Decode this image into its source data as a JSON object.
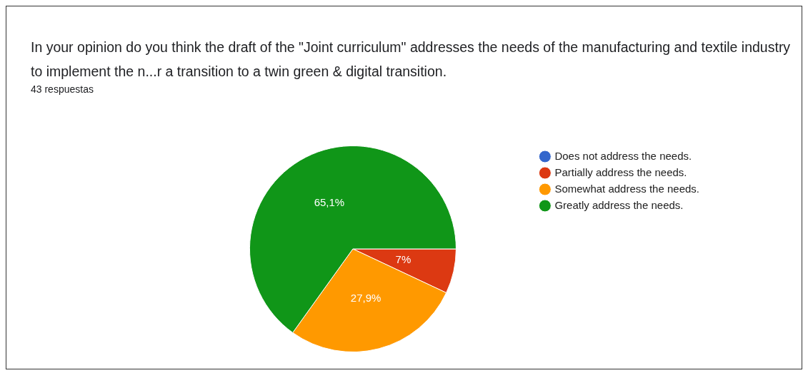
{
  "chart_data": {
    "type": "pie",
    "title": "In your opinion do you think the draft of the \"Joint curriculum\" addresses the needs of the manufacturing and textile industry to implement the n...r a transition to a twin green & digital transition.",
    "subtitle": "43 respuestas",
    "categories": [
      "Does not address the needs.",
      "Partially address the needs.",
      "Somewhat address the needs.",
      "Greatly address the needs."
    ],
    "values": [
      0,
      7,
      27.9,
      65.1
    ],
    "colors": [
      "#3366cc",
      "#dc3912",
      "#ff9900",
      "#109618"
    ],
    "value_labels": [
      null,
      "7%",
      "27,9%",
      "65,1%"
    ],
    "legend": "right"
  }
}
